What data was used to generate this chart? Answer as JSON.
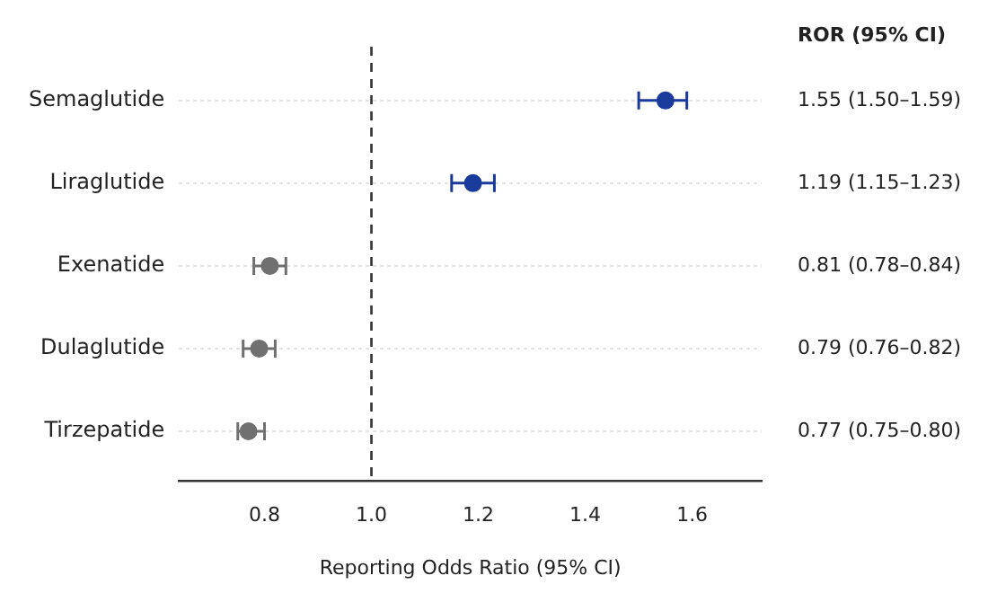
{
  "chart_data": {
    "type": "scatter",
    "orientation": "horizontal",
    "xlabel": "Reporting Odds Ratio (95% CI)",
    "categories": [
      "Semaglutide",
      "Liraglutide",
      "Exenatide",
      "Dulaglutide",
      "Tirzepatide"
    ],
    "values": [
      1.55,
      1.19,
      0.81,
      0.79,
      0.77
    ],
    "errors": [
      [
        1.5,
        1.59
      ],
      [
        1.15,
        1.23
      ],
      [
        0.78,
        0.84
      ],
      [
        0.76,
        0.82
      ],
      [
        0.75,
        0.8
      ]
    ],
    "colors": [
      "#1a3a9c",
      "#1a3a9c",
      "#707070",
      "#707070",
      "#707070"
    ],
    "value_labels": [
      "1.55 (1.50–1.59)",
      "1.19 (1.15–1.23)",
      "0.81 (0.78–0.84)",
      "0.79 (0.76–0.82)",
      "0.77 (0.75–0.80)"
    ],
    "annotations": [
      "ROR (95% CI)"
    ],
    "xlim": [
      0.64,
      1.73
    ],
    "xticks": [
      0.8,
      {
        "value": 1,
        "label": "1.0"
      },
      1.2,
      1.4,
      1.6
    ],
    "grid": "y",
    "marker": "circle",
    "legend": false,
    "ref_lines": [
      {
        "axis": "x",
        "value": 1,
        "color": "#333333",
        "line_style": "dashed"
      }
    ]
  }
}
